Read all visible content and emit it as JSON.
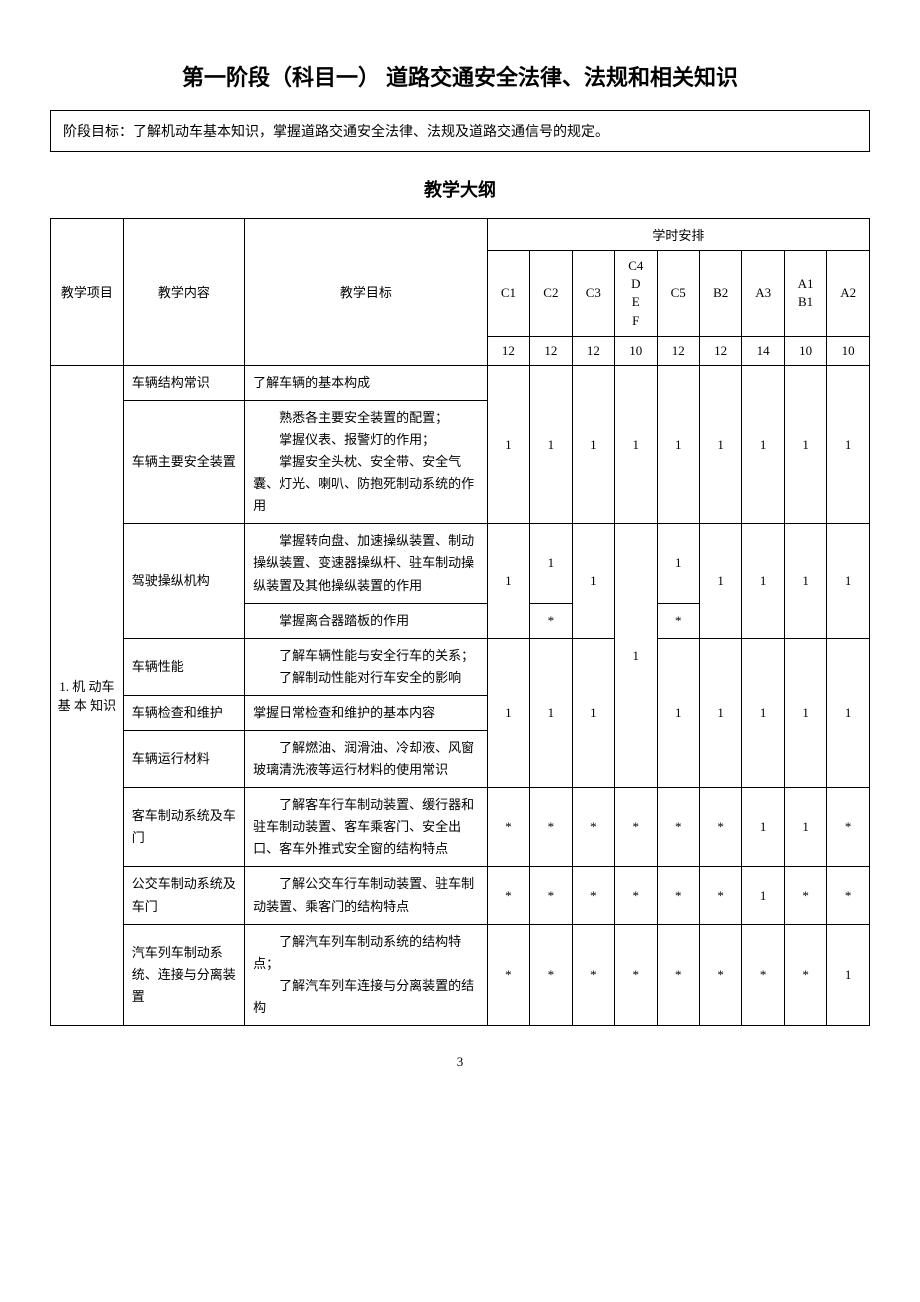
{
  "title": "第一阶段（科目一）  道路交通安全法律、法规和相关知识",
  "stage_goal_label": "阶段目标：",
  "stage_goal_text": "了解机动车基本知识，掌握道路交通安全法律、法规及道路交通信号的规定。",
  "subtitle": "教学大纲",
  "headers": {
    "project": "教学项目",
    "content": "教学内容",
    "target": "教学目标",
    "schedule": "学时安排",
    "cols": [
      "C1",
      "C2",
      "C3",
      "C4\nD\nE\nF",
      "C5",
      "B2",
      "A3",
      "A1\nB1",
      "A2"
    ],
    "hour_row": [
      "12",
      "12",
      "12",
      "10",
      "12",
      "12",
      "14",
      "10",
      "10"
    ]
  },
  "group": {
    "project": "1. 机 动车 基 本 知识",
    "rows": [
      {
        "content": "车辆结构常识",
        "target": "了解车辆的基本构成",
        "hours": null,
        "merge_start": true
      },
      {
        "content": "车辆主要安全装置",
        "target_lines": [
          "熟悉各主要安全装置的配置；",
          "掌握仪表、报警灯的作用；",
          "掌握安全头枕、安全带、安全气囊、灯光、喇叭、防抱死制动系统的作用"
        ],
        "hours": [
          "1",
          "1",
          "1",
          "1",
          "1",
          "1",
          "1",
          "1",
          "1"
        ],
        "merge_end": true
      },
      {
        "content": "驾驶操纵机构",
        "target_lines": [
          "掌握转向盘、加速操纵装置、制动操纵装置、变速器操纵杆、驻车制动操纵装置及其他操纵装置的作用"
        ],
        "sub": {
          "target": "掌握离合器踏板的作用",
          "c2": "*",
          "c5": "*"
        },
        "hours_main": {
          "c1": "1",
          "c2": "1",
          "c3": "1",
          "c5": "1",
          "b2": "1",
          "a3": "1",
          "a1b1": "1",
          "a2": "1"
        }
      },
      {
        "content": "车辆性能",
        "target_lines": [
          "了解车辆性能与安全行车的关系；",
          "了解制动性能对行车安全的影响"
        ],
        "c4": "1"
      },
      {
        "content": "车辆检查和维护",
        "target": "掌握日常检查和维护的基本内容",
        "hours": [
          "1",
          "1",
          "1",
          "",
          "1",
          "1",
          "1",
          "1",
          "1"
        ]
      },
      {
        "content": "车辆运行材料",
        "target_lines": [
          "了解燃油、润滑油、冷却液、风窗玻璃清洗液等运行材料的使用常识"
        ]
      },
      {
        "content": "客车制动系统及车门",
        "target_lines": [
          "了解客车行车制动装置、缓行器和驻车制动装置、客车乘客门、安全出口、客车外推式安全窗的结构特点"
        ],
        "hours": [
          "*",
          "*",
          "*",
          "*",
          "*",
          "*",
          "1",
          "1",
          "*"
        ]
      },
      {
        "content": "公交车制动系统及车门",
        "target_lines": [
          "了解公交车行车制动装置、驻车制动装置、乘客门的结构特点"
        ],
        "hours": [
          "*",
          "*",
          "*",
          "*",
          "*",
          "*",
          "1",
          "*",
          "*"
        ]
      },
      {
        "content": "汽车列车制动系统、连接与分离装置",
        "target_lines": [
          "了解汽车列车制动系统的结构特点；",
          "了解汽车列车连接与分离装置的结构"
        ],
        "hours": [
          "*",
          "*",
          "*",
          "*",
          "*",
          "*",
          "*",
          "*",
          "1"
        ]
      }
    ]
  },
  "page_number": "3"
}
